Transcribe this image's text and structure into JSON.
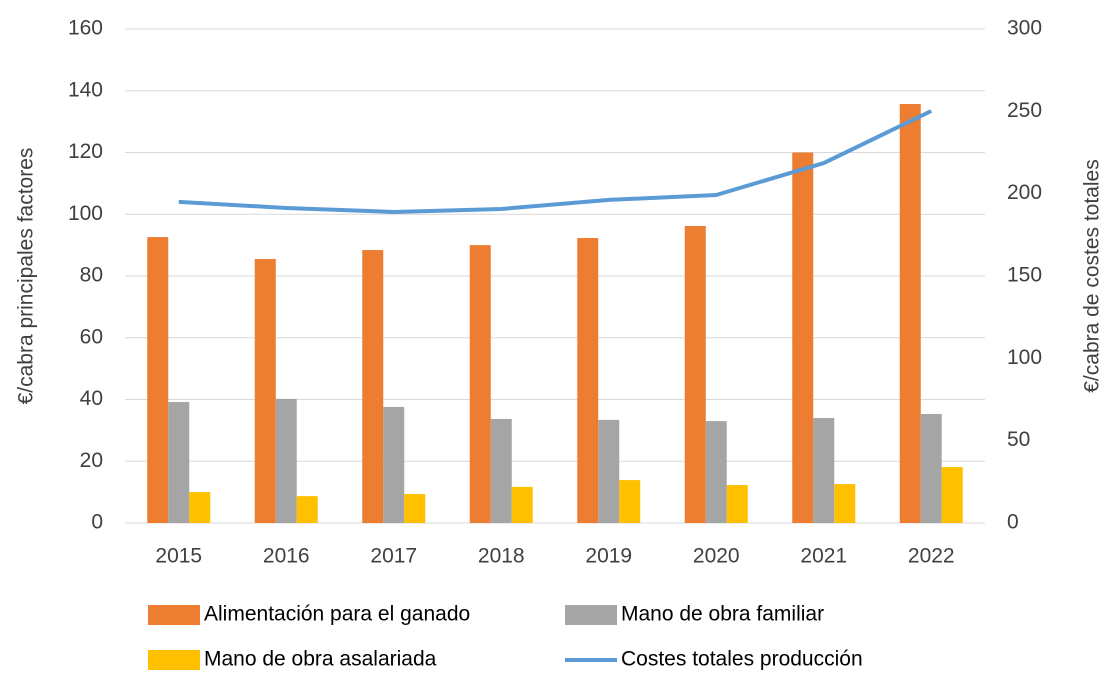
{
  "chart_data": {
    "type": "bar_line",
    "categories": [
      "2015",
      "2016",
      "2017",
      "2018",
      "2019",
      "2020",
      "2021",
      "2022"
    ],
    "y_label": "€/cabra principales factores",
    "y2_label": "€/cabra de costes totales",
    "series": [
      {
        "name": "Alimentación para el ganado",
        "type": "bar",
        "color": "#ed7d31",
        "values": [
          92.6,
          85.5,
          88.4,
          90.0,
          92.3,
          96.2,
          120.0,
          135.7
        ]
      },
      {
        "name": "Mano de obra familiar",
        "type": "bar",
        "color": "#a5a5a5",
        "values": [
          39.2,
          40.2,
          37.6,
          33.7,
          33.4,
          33.0,
          34.0,
          35.3
        ]
      },
      {
        "name": "Mano de obra asalariada",
        "type": "bar",
        "color": "#ffc000",
        "values": [
          10.0,
          8.7,
          9.4,
          11.7,
          13.9,
          12.3,
          12.6,
          18.1
        ]
      },
      {
        "name": "Costes totales producción",
        "type": "line",
        "axis": "y2",
        "color": "#5b9bd5",
        "values": [
          195,
          191.3,
          188.9,
          190.7,
          196.2,
          199.2,
          218.6,
          250.2
        ]
      }
    ],
    "ylim": [
      0,
      160
    ],
    "yticks": [
      0,
      20,
      40,
      60,
      80,
      100,
      120,
      140,
      160
    ],
    "y2lim": [
      0,
      300
    ],
    "y2ticks": [
      0,
      50,
      100,
      150,
      200,
      250,
      300
    ],
    "grid": true,
    "legend": "bottom"
  }
}
